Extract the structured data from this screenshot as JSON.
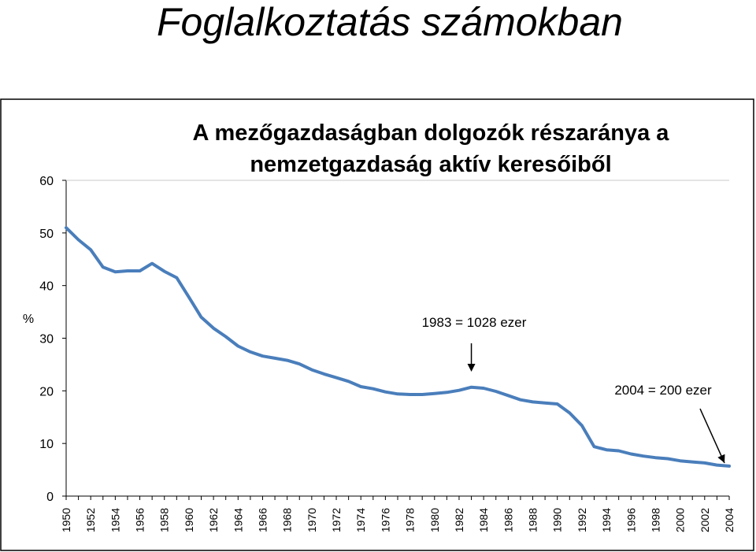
{
  "slide_title": "Foglalkoztatás számokban",
  "colors": {
    "series": "#4a7ebb",
    "axis": "#000000"
  },
  "chart_data": {
    "type": "line",
    "title_lines": [
      "A mezőgazdaságban dolgozók részaránya a",
      "nemzetgazdaság aktív keresőiből"
    ],
    "ylabel": "%",
    "xlabel": "",
    "ylim": [
      0,
      60
    ],
    "y_ticks": [
      0,
      10,
      20,
      30,
      40,
      50,
      60
    ],
    "x_tick_labels": [
      "1950",
      "1952",
      "1954",
      "1956",
      "1958",
      "1960",
      "1962",
      "1964",
      "1966",
      "1968",
      "1970",
      "1972",
      "1974",
      "1976",
      "1978",
      "1980",
      "1982",
      "1984",
      "1986",
      "1988",
      "1990",
      "1992",
      "1994",
      "1996",
      "1998",
      "2000",
      "2002",
      "2004"
    ],
    "x": [
      1950,
      1951,
      1952,
      1953,
      1954,
      1955,
      1956,
      1957,
      1958,
      1959,
      1960,
      1961,
      1962,
      1963,
      1964,
      1965,
      1966,
      1967,
      1968,
      1969,
      1970,
      1971,
      1972,
      1973,
      1974,
      1975,
      1976,
      1977,
      1978,
      1979,
      1980,
      1981,
      1982,
      1983,
      1984,
      1985,
      1986,
      1987,
      1988,
      1989,
      1990,
      1991,
      1992,
      1993,
      1994,
      1995,
      1996,
      1997,
      1998,
      1999,
      2000,
      2001,
      2002,
      2003,
      2004
    ],
    "values": [
      51,
      48.7,
      46.8,
      43.5,
      42.6,
      42.8,
      42.8,
      44.2,
      42.7,
      41.5,
      37.8,
      34,
      31.9,
      30.3,
      28.5,
      27.4,
      26.6,
      26.2,
      25.8,
      25.1,
      24,
      23.2,
      22.5,
      21.8,
      20.8,
      20.4,
      19.8,
      19.4,
      19.3,
      19.3,
      19.5,
      19.7,
      20.1,
      20.7,
      20.5,
      19.9,
      19.1,
      18.3,
      17.9,
      17.7,
      17.5,
      15.8,
      13.4,
      9.4,
      8.8,
      8.6,
      8,
      7.6,
      7.3,
      7.1,
      6.7,
      6.5,
      6.3,
      5.9,
      5.7
    ],
    "annotations": [
      {
        "text": "1983 = 1028 ezer",
        "x": 1983,
        "y": 20.7
      },
      {
        "text": "2004 = 200 ezer",
        "x": 2004,
        "y": 5.7
      }
    ],
    "grid": false,
    "legend": "none"
  }
}
